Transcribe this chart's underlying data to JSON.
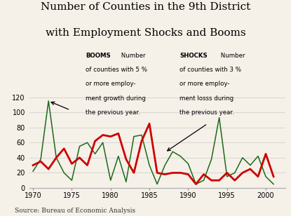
{
  "title_line1": "Number of Counties in the 9th District",
  "title_line2": "with Employment Shocks and Booms",
  "source": "Source: Bureau of Economic Analysis",
  "years": [
    1970,
    1971,
    1972,
    1973,
    1974,
    1975,
    1976,
    1977,
    1978,
    1979,
    1980,
    1981,
    1982,
    1983,
    1984,
    1985,
    1986,
    1987,
    1988,
    1989,
    1990,
    1991,
    1992,
    1993,
    1994,
    1995,
    1996,
    1997,
    1998,
    1999,
    2000,
    2001
  ],
  "booms_green": [
    22,
    38,
    115,
    40,
    20,
    10,
    55,
    60,
    45,
    60,
    10,
    42,
    8,
    68,
    70,
    30,
    5,
    30,
    48,
    42,
    32,
    5,
    10,
    38,
    93,
    15,
    20,
    40,
    30,
    42,
    15,
    5
  ],
  "shocks_red": [
    30,
    35,
    25,
    40,
    52,
    32,
    40,
    30,
    62,
    70,
    68,
    72,
    38,
    20,
    62,
    85,
    20,
    18,
    20,
    20,
    18,
    5,
    18,
    10,
    10,
    20,
    10,
    20,
    25,
    15,
    45,
    15
  ],
  "booms_color": "#1a6b1a",
  "shocks_color": "#cc0000",
  "ylim": [
    0,
    120
  ],
  "yticks": [
    0,
    20,
    40,
    60,
    80,
    100,
    120
  ],
  "xlim": [
    1969.5,
    2002.5
  ],
  "xticks": [
    1970,
    1975,
    1980,
    1985,
    1990,
    1995,
    2000
  ],
  "bg_color": "#f5f0e8"
}
